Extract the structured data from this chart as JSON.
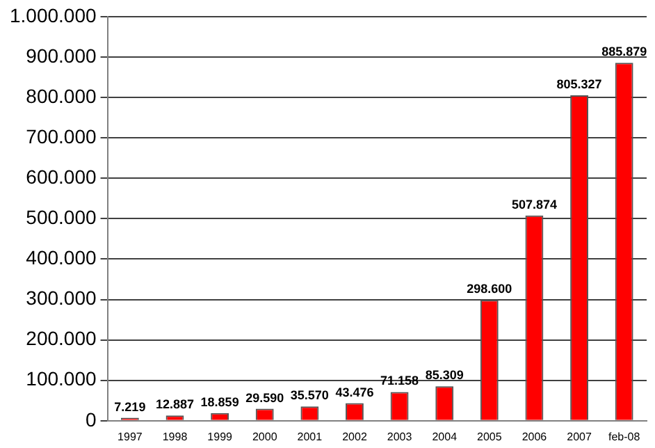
{
  "chart_data": {
    "type": "bar",
    "categories": [
      "1997",
      "1998",
      "1999",
      "2000",
      "2001",
      "2002",
      "2003",
      "2004",
      "2005",
      "2006",
      "2007",
      "feb-08"
    ],
    "values": [
      7219,
      12887,
      18859,
      29590,
      35570,
      43476,
      71158,
      85309,
      298600,
      507874,
      805327,
      885879
    ],
    "value_labels": [
      "7.219",
      "12.887",
      "18.859",
      "29.590",
      "35.570",
      "43.476",
      "71.158",
      "85.309",
      "298.600",
      "507.874",
      "805.327",
      "885.879"
    ],
    "color": "#ff0000",
    "ylim": [
      0,
      1000000
    ],
    "yticks": [
      {
        "value": 0,
        "label": "0"
      },
      {
        "value": 100000,
        "label": "100.000"
      },
      {
        "value": 200000,
        "label": "200.000"
      },
      {
        "value": 300000,
        "label": "300.000"
      },
      {
        "value": 400000,
        "label": "400.000"
      },
      {
        "value": 500000,
        "label": "500.000"
      },
      {
        "value": 600000,
        "label": "600.000"
      },
      {
        "value": 700000,
        "label": "700.000"
      },
      {
        "value": 800000,
        "label": "800.000"
      },
      {
        "value": 900000,
        "label": "900.000"
      },
      {
        "value": 1000000,
        "label": "1.000.000"
      }
    ],
    "grid": "y",
    "legend": false
  }
}
